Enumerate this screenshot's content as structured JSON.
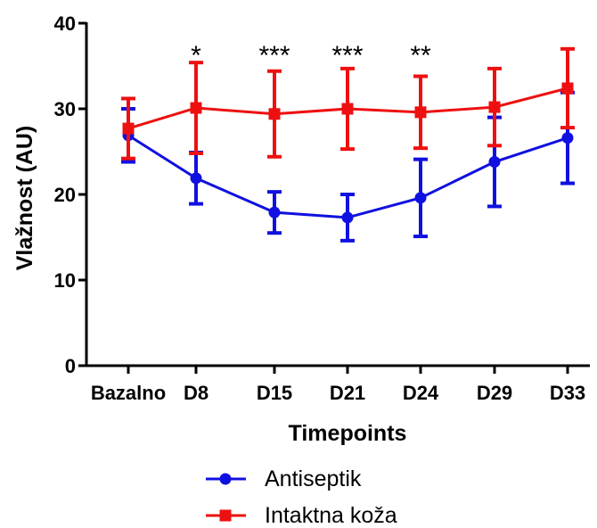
{
  "chart_data": {
    "type": "line",
    "xlabel": "Timepoints",
    "ylabel": "Vlažnost (AU)",
    "ylim": [
      0,
      40
    ],
    "yticks": [
      0,
      10,
      20,
      30,
      40
    ],
    "categories": [
      "Bazalno",
      "D8",
      "D15",
      "D21",
      "D24",
      "D29",
      "D33"
    ],
    "series": [
      {
        "name": "Antiseptik",
        "color": "#1010e0",
        "marker": "circle",
        "values": [
          26.9,
          21.9,
          17.9,
          17.3,
          19.6,
          23.8,
          26.6
        ],
        "error": [
          3.1,
          3.0,
          2.4,
          2.7,
          4.5,
          5.2,
          5.3
        ]
      },
      {
        "name": "Intaktna koža",
        "color": "#ee1010",
        "marker": "square",
        "values": [
          27.7,
          30.1,
          29.4,
          30.0,
          29.6,
          30.2,
          32.4
        ],
        "error": [
          3.5,
          5.3,
          5.0,
          4.7,
          4.2,
          4.5,
          4.6
        ]
      }
    ],
    "significance": [
      {
        "category": "D8",
        "label": "*"
      },
      {
        "category": "D15",
        "label": "***"
      },
      {
        "category": "D21",
        "label": "***"
      },
      {
        "category": "D24",
        "label": "**"
      }
    ],
    "legend": {
      "position": "bottom"
    },
    "grid": false
  }
}
